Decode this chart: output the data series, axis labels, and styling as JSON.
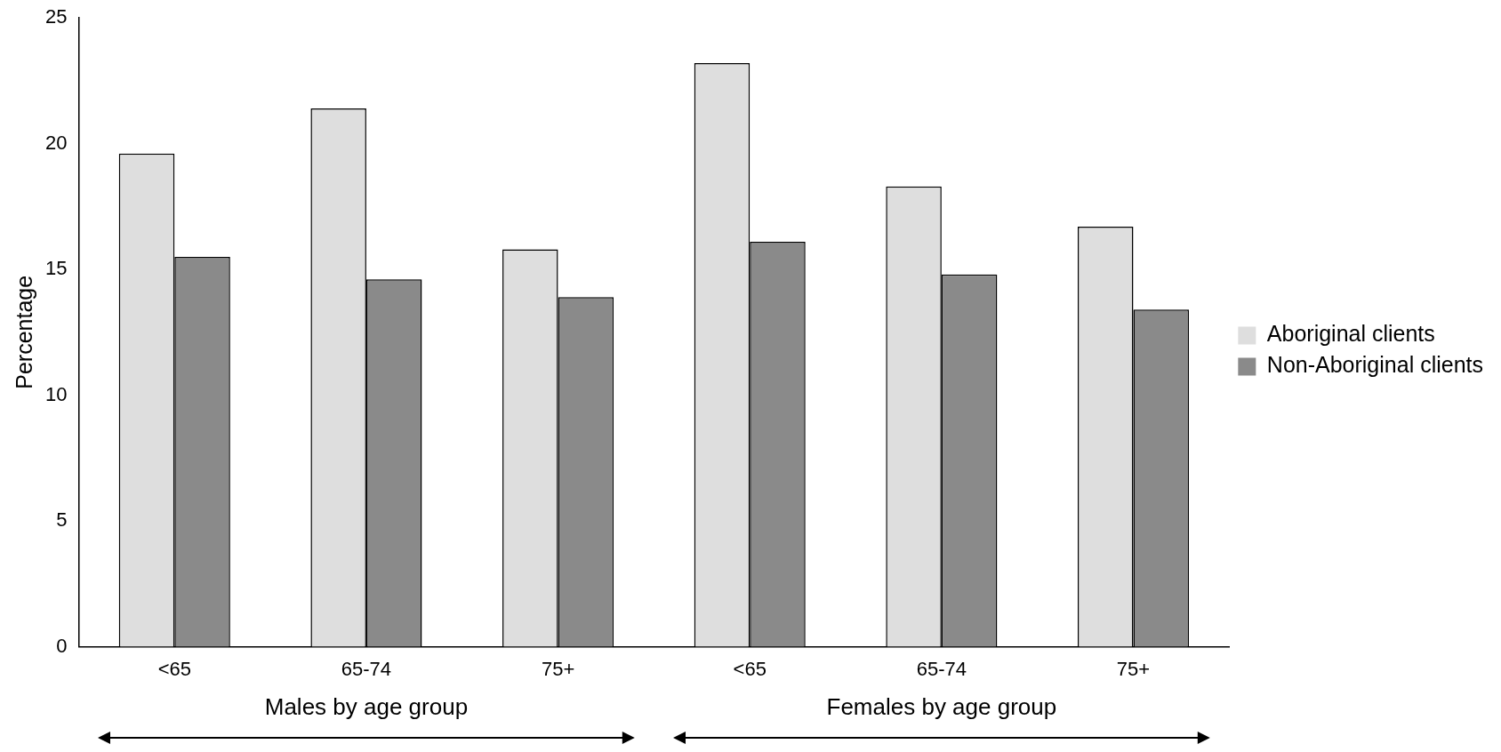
{
  "chart_data": {
    "type": "bar",
    "categories": [
      "<65",
      "65-74",
      "75+",
      "<65",
      "65-74",
      "75+"
    ],
    "series": [
      {
        "name": "Aboriginal clients",
        "color": "#dedede",
        "values": [
          19.6,
          21.4,
          15.8,
          23.2,
          18.3,
          16.7
        ]
      },
      {
        "name": "Non-Aboriginal clients",
        "color": "#8a8a8a",
        "values": [
          15.5,
          14.6,
          13.9,
          16.1,
          14.8,
          13.4
        ]
      }
    ],
    "ylabel": "Percentage",
    "ylim": [
      0,
      25
    ],
    "yticks": [
      0,
      5,
      10,
      15,
      20,
      25
    ],
    "grid": false,
    "legend": "right",
    "annotations": [
      "Males by age group",
      "Females by age group"
    ]
  }
}
